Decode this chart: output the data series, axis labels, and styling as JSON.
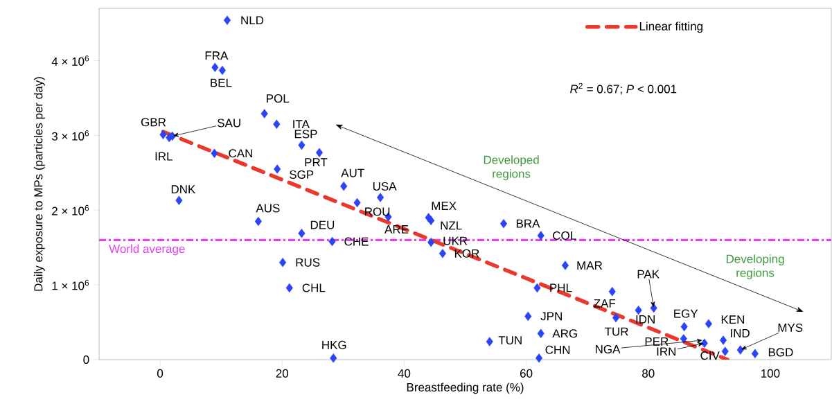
{
  "chart_data": {
    "type": "scatter",
    "xlabel": "Breastfeeding rate (%)",
    "ylabel": "Daily exposure to MPs (particles per day)",
    "xlim": [
      -10,
      110
    ],
    "ylim": [
      0,
      4700000
    ],
    "xticks": [
      0,
      20,
      40,
      60,
      80,
      100
    ],
    "yticks": [
      0,
      {
        "value": 1000000,
        "label": "1 × 10$^{6}$"
      },
      {
        "value": 2000000,
        "label": "2 × 10$^{6}$"
      },
      {
        "value": 3000000,
        "label": "3 × 10$^{6}$"
      },
      {
        "value": 4000000,
        "label": "4 × 10$^{6}$"
      }
    ],
    "legend": "top right",
    "series": [
      {
        "color": "#2b44f5",
        "marker": "diamond",
        "x": [
          11.0,
          9.0,
          10.2,
          17.1,
          19.1,
          0.5,
          1.5,
          2.0,
          23.2,
          26.1,
          8.9,
          19.2,
          3.1,
          16.1,
          23.2,
          28.2,
          20.1,
          21.2,
          28.4,
          30.1,
          36.1,
          32.3,
          37.4,
          44.0,
          44.4,
          44.4,
          46.3,
          56.3,
          62.4,
          66.4,
          61.8,
          60.3,
          62.4,
          54.0,
          62.1,
          74.1,
          74.7,
          78.4,
          80.9,
          85.9,
          89.9,
          85.8,
          89.0,
          89.2,
          92.6,
          92.3,
          95.1,
          97.5
        ],
        "values": [
          4540000,
          3910000,
          3870000,
          3290000,
          3150000,
          3010000,
          2970000,
          2990000,
          2870000,
          2770000,
          2760000,
          2550000,
          2130000,
          1850000,
          1690000,
          1580000,
          1300000,
          960000,
          20000,
          2320000,
          2170000,
          2100000,
          1910000,
          1900000,
          1860000,
          1570000,
          1420000,
          1820000,
          1660000,
          1260000,
          960000,
          580000,
          350000,
          240000,
          20000,
          910000,
          560000,
          660000,
          690000,
          440000,
          480000,
          280000,
          null,
          220000,
          110000,
          260000,
          130000,
          80000
        ]
      },
      {
        "type": "line",
        "name": "Linear fitting",
        "color": "#e8392f",
        "line_style": "dashed",
        "marker": "none",
        "x": [
          0.5,
          93
        ],
        "values": [
          3050000,
          0
        ]
      }
    ],
    "ref_lines": [
      {
        "axis": "y",
        "value": 1600000,
        "label": "World average",
        "color": "#e33ff0",
        "line_style": "dashdot"
      }
    ],
    "annotations": [
      {
        "text": "NLD",
        "x": 11.0,
        "y": 4540000
      },
      {
        "text": "FRA",
        "x": 9.0,
        "y": 3910000
      },
      {
        "text": "BEL",
        "x": 10.2,
        "y": 3870000
      },
      {
        "text": "POL",
        "x": 17.1,
        "y": 3290000
      },
      {
        "text": "ITA",
        "x": 19.1,
        "y": 3150000
      },
      {
        "text": "GBR",
        "x": 0.5,
        "y": 3010000
      },
      {
        "text": "IRL",
        "x": 1.5,
        "y": 2970000
      },
      {
        "text": "SAU",
        "x": 2.0,
        "y": 2990000
      },
      {
        "text": "ESP",
        "x": 23.2,
        "y": 2870000
      },
      {
        "text": "PRT",
        "x": 26.1,
        "y": 2770000
      },
      {
        "text": "CAN",
        "x": 8.9,
        "y": 2760000
      },
      {
        "text": "SGP",
        "x": 19.2,
        "y": 2550000
      },
      {
        "text": "DNK",
        "x": 3.1,
        "y": 2130000
      },
      {
        "text": "AUS",
        "x": 16.1,
        "y": 1850000
      },
      {
        "text": "DEU",
        "x": 23.2,
        "y": 1690000
      },
      {
        "text": "CHE",
        "x": 28.2,
        "y": 1580000
      },
      {
        "text": "RUS",
        "x": 20.1,
        "y": 1300000
      },
      {
        "text": "CHL",
        "x": 21.2,
        "y": 960000
      },
      {
        "text": "HKG",
        "x": 28.4,
        "y": 20000
      },
      {
        "text": "AUT",
        "x": 30.1,
        "y": 2320000
      },
      {
        "text": "USA",
        "x": 36.1,
        "y": 2170000
      },
      {
        "text": "ROU",
        "x": 32.3,
        "y": 2100000
      },
      {
        "text": "ARE",
        "x": 37.4,
        "y": 1910000
      },
      {
        "text": "MEX",
        "x": 44.0,
        "y": 1900000
      },
      {
        "text": "NZL",
        "x": 44.4,
        "y": 1860000
      },
      {
        "text": "UKR",
        "x": 44.4,
        "y": 1570000
      },
      {
        "text": "KOR",
        "x": 46.3,
        "y": 1420000
      },
      {
        "text": "BRA",
        "x": 56.3,
        "y": 1820000
      },
      {
        "text": "COL",
        "x": 62.4,
        "y": 1660000
      },
      {
        "text": "MAR",
        "x": 66.4,
        "y": 1260000
      },
      {
        "text": "PHL",
        "x": 61.8,
        "y": 960000
      },
      {
        "text": "JPN",
        "x": 60.3,
        "y": 580000
      },
      {
        "text": "ARG",
        "x": 62.4,
        "y": 350000
      },
      {
        "text": "TUN",
        "x": 54.0,
        "y": 240000
      },
      {
        "text": "CHN",
        "x": 62.1,
        "y": 20000
      },
      {
        "text": "ZAF",
        "x": 74.1,
        "y": 910000
      },
      {
        "text": "TUR",
        "x": 74.7,
        "y": 560000
      },
      {
        "text": "IDN",
        "x": 78.4,
        "y": 660000
      },
      {
        "text": "PAK",
        "x": 80.9,
        "y": 690000
      },
      {
        "text": "EGY",
        "x": 85.9,
        "y": 440000
      },
      {
        "text": "KEN",
        "x": 89.9,
        "y": 480000
      },
      {
        "text": "PER",
        "x": 85.8,
        "y": 280000
      },
      {
        "text": "NGA",
        "x": 89.0,
        "y": 260000
      },
      {
        "text": "IRN",
        "x": 89.2,
        "y": 220000
      },
      {
        "text": "CIV",
        "x": 92.6,
        "y": 110000
      },
      {
        "text": "IND",
        "x": 92.3,
        "y": 260000
      },
      {
        "text": "MYS",
        "x": 95.1,
        "y": 130000
      },
      {
        "text": "BGD",
        "x": 97.5,
        "y": 80000
      },
      "Developed regions",
      "Developing regions",
      "*R*$^{2}$ = 0.67; *P* < 0.001"
    ]
  }
}
